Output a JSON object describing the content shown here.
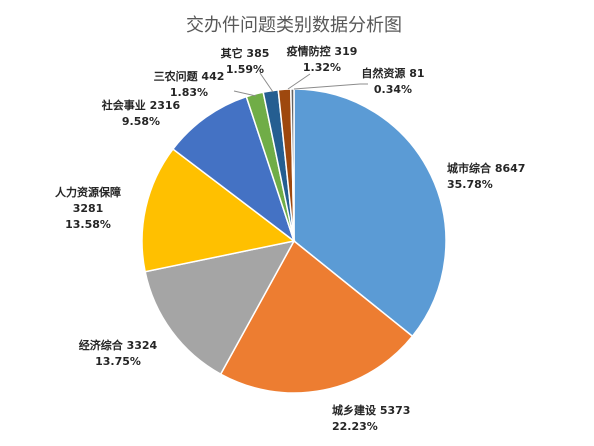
{
  "chart_data": {
    "type": "pie",
    "title": "交办件问题类别数据分析图",
    "slices": [
      {
        "name": "城市综合",
        "value": 8647,
        "percent": "35.78%",
        "value_label": "城市综合 8647",
        "color": "#5B9BD5"
      },
      {
        "name": "城乡建设",
        "value": 5373,
        "percent": "22.23%",
        "value_label": "城乡建设 5373",
        "color": "#ED7D31"
      },
      {
        "name": "经济综合",
        "value": 3324,
        "percent": "13.75%",
        "value_label": "经济综合 3324",
        "color": "#A5A5A5"
      },
      {
        "name": "人力资源保障",
        "value": 3281,
        "percent": "13.58%",
        "value_label": "人力资源保障",
        "value_number": "3281",
        "color": "#FFC000"
      },
      {
        "name": "社会事业",
        "value": 2316,
        "percent": "9.58%",
        "value_label": "社会事业 2316",
        "color": "#4472C4"
      },
      {
        "name": "三农问题",
        "value": 442,
        "percent": "1.83%",
        "value_label": "三农问题 442",
        "color": "#70AD47"
      },
      {
        "name": "其它",
        "value": 385,
        "percent": "1.59%",
        "value_label": "其它 385",
        "color": "#255E91"
      },
      {
        "name": "疫情防控",
        "value": 319,
        "percent": "1.32%",
        "value_label": "疫情防控 319",
        "color": "#9E480E"
      },
      {
        "name": "自然资源",
        "value": 81,
        "percent": "0.34%",
        "value_label": "自然资源 81",
        "color": "#636363"
      }
    ],
    "legend": "none",
    "start_angle": "12 o'clock",
    "direction": "clockwise"
  }
}
